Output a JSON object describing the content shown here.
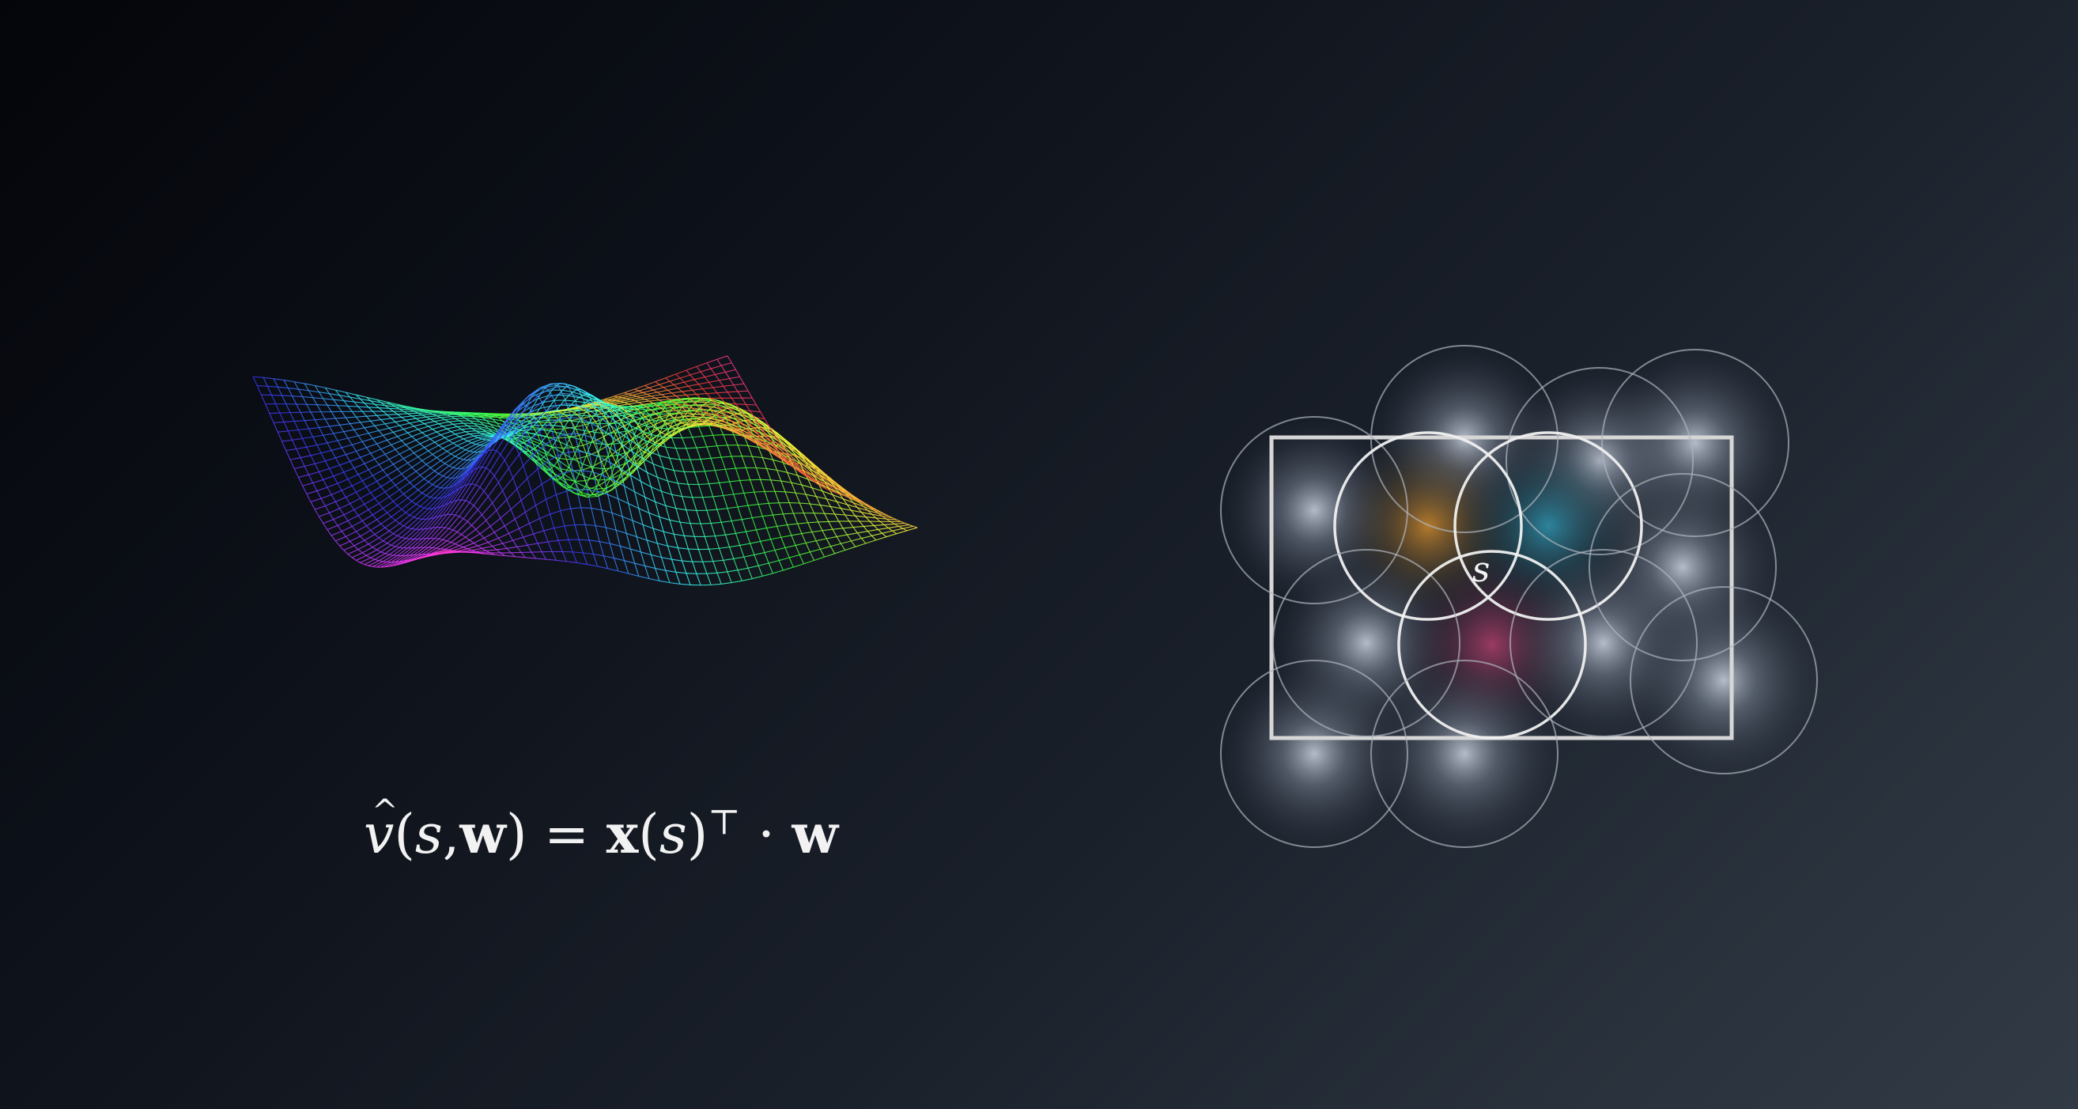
{
  "formula": {
    "v": "v",
    "open": "(",
    "s1": "s",
    "comma": ",",
    "w1": "w",
    "close": ")",
    "eq": "=",
    "x": "x",
    "open2": "(",
    "s2": "s",
    "close2": ")",
    "transpose": "⊤",
    "dot": "·",
    "w2": "w"
  },
  "state_label": "s",
  "colors": {
    "background_dark": "#04050a",
    "background_light": "#313a45",
    "circle_stroke": "#c8ccd4",
    "region_stroke": "#d9d9d9",
    "highlight_orange": "#c9882a",
    "highlight_teal": "#2f8fa6",
    "highlight_pink": "#b0406e"
  },
  "icons": [
    "wireframe-surface",
    "coarse-coding-circles"
  ]
}
